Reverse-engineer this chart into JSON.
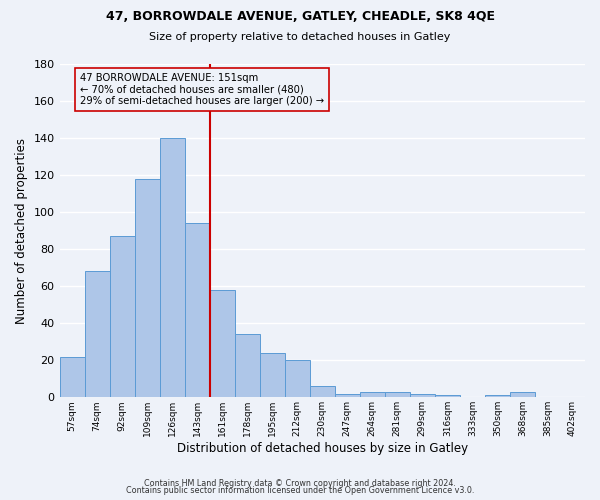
{
  "title1": "47, BORROWDALE AVENUE, GATLEY, CHEADLE, SK8 4QE",
  "title2": "Size of property relative to detached houses in Gatley",
  "xlabel": "Distribution of detached houses by size in Gatley",
  "ylabel": "Number of detached properties",
  "bar_labels": [
    "57sqm",
    "74sqm",
    "92sqm",
    "109sqm",
    "126sqm",
    "143sqm",
    "161sqm",
    "178sqm",
    "195sqm",
    "212sqm",
    "230sqm",
    "247sqm",
    "264sqm",
    "281sqm",
    "299sqm",
    "316sqm",
    "333sqm",
    "350sqm",
    "368sqm",
    "385sqm",
    "402sqm"
  ],
  "bar_values": [
    22,
    68,
    87,
    118,
    140,
    94,
    58,
    34,
    24,
    20,
    6,
    2,
    3,
    3,
    2,
    1,
    0,
    1,
    3,
    0,
    0
  ],
  "bar_color": "#aec6e8",
  "bar_edge_color": "#5b9bd5",
  "vline_x": 5.5,
  "vline_color": "#cc0000",
  "annotation_line1": "47 BORROWDALE AVENUE: 151sqm",
  "annotation_line2": "← 70% of detached houses are smaller (480)",
  "annotation_line3": "29% of semi-detached houses are larger (200) →",
  "annotation_box_edge": "#cc0000",
  "ylim": [
    0,
    180
  ],
  "yticks": [
    0,
    20,
    40,
    60,
    80,
    100,
    120,
    140,
    160,
    180
  ],
  "footer1": "Contains HM Land Registry data © Crown copyright and database right 2024.",
  "footer2": "Contains public sector information licensed under the Open Government Licence v3.0.",
  "background_color": "#eef2f9",
  "grid_color": "#ffffff"
}
